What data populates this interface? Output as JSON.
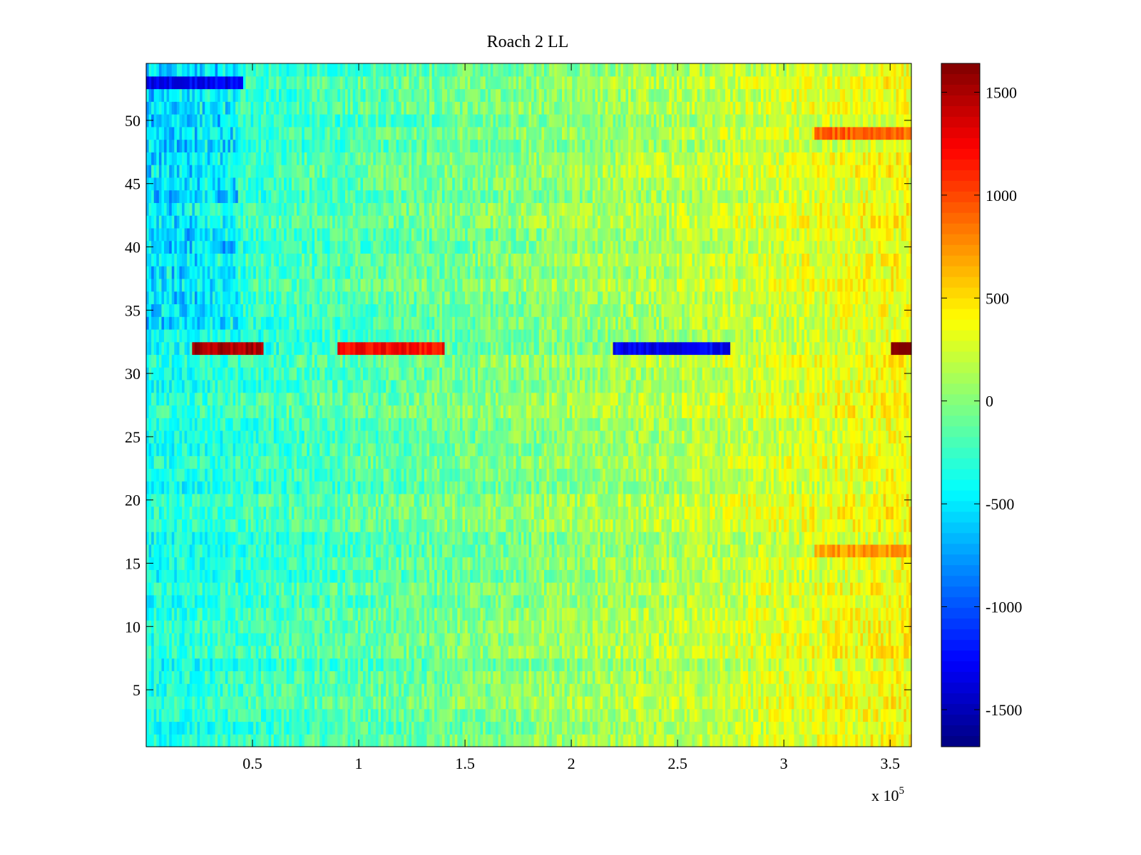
{
  "chart_data": {
    "type": "heatmap",
    "title": "Roach 2 LL",
    "xlabel": "",
    "ylabel": "",
    "x_exponent_label": "x 10",
    "x_exponent_power": "5",
    "xlim": [
      0,
      360000
    ],
    "ylim": [
      0.5,
      54.5
    ],
    "x_ticks": [
      0.5,
      1,
      1.5,
      2,
      2.5,
      3,
      3.5
    ],
    "x_tick_labels": [
      "0.5",
      "1",
      "1.5",
      "2",
      "2.5",
      "3",
      "3.5"
    ],
    "y_ticks": [
      5,
      10,
      15,
      20,
      25,
      30,
      35,
      40,
      45,
      50
    ],
    "y_tick_labels": [
      "5",
      "10",
      "15",
      "20",
      "25",
      "30",
      "35",
      "40",
      "45",
      "50"
    ],
    "colorbar": {
      "colormap": "jet",
      "range": [
        -1680,
        1640
      ],
      "ticks": [
        -1500,
        -1000,
        -500,
        0,
        500,
        1000,
        1500
      ],
      "tick_labels": [
        "-1500",
        "-1000",
        "-500",
        "0",
        "500",
        "1000",
        "1500"
      ]
    },
    "rows": 54,
    "grid": false,
    "legend": "none",
    "notable_features": [
      {
        "row": 32,
        "x_range": [
          22000,
          55000
        ],
        "approx_value": 1500
      },
      {
        "row": 32,
        "x_range": [
          90000,
          140000
        ],
        "approx_value": 1200
      },
      {
        "row": 32,
        "x_range": [
          220000,
          275000
        ],
        "approx_value": -1300
      },
      {
        "row": 32,
        "x_range": [
          350000,
          360000
        ],
        "approx_value": 1600
      },
      {
        "row": 53,
        "x_range": [
          0,
          45000
        ],
        "approx_value": -1300
      },
      {
        "row": 49,
        "x_range": [
          315000,
          360000
        ],
        "approx_value": 900
      },
      {
        "row": 16,
        "x_range": [
          315000,
          360000
        ],
        "approx_value": 700
      }
    ]
  }
}
